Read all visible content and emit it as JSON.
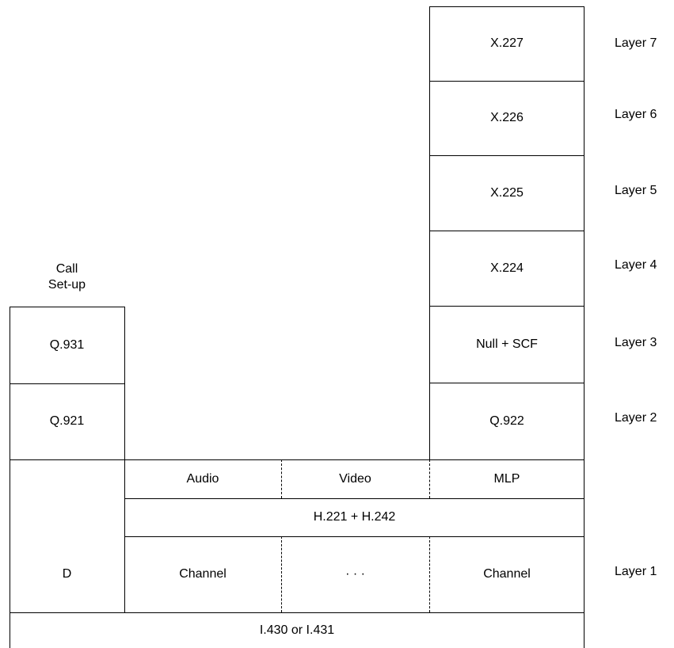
{
  "right_stack": {
    "x227": "X.227",
    "x226": "X.226",
    "x225": "X.225",
    "x224": "X.224",
    "null_scf": "Null + SCF",
    "q922": "Q.922",
    "mlp": "MLP",
    "channel_right": "Channel"
  },
  "left_stack": {
    "call_setup": "Call\nSet-up",
    "q931": "Q.931",
    "q921": "Q.921",
    "d": "D"
  },
  "middle": {
    "audio": "Audio",
    "video": "Video",
    "h221": "H.221 + H.242",
    "channel_left": "Channel",
    "ellipsis": "· · ·"
  },
  "bottom": {
    "i430": "I.430 or I.431"
  },
  "layers": {
    "l7": "Layer 7",
    "l6": "Layer 6",
    "l5": "Layer 5",
    "l4": "Layer 4",
    "l3": "Layer 3",
    "l2": "Layer 2",
    "l1": "Layer 1"
  }
}
